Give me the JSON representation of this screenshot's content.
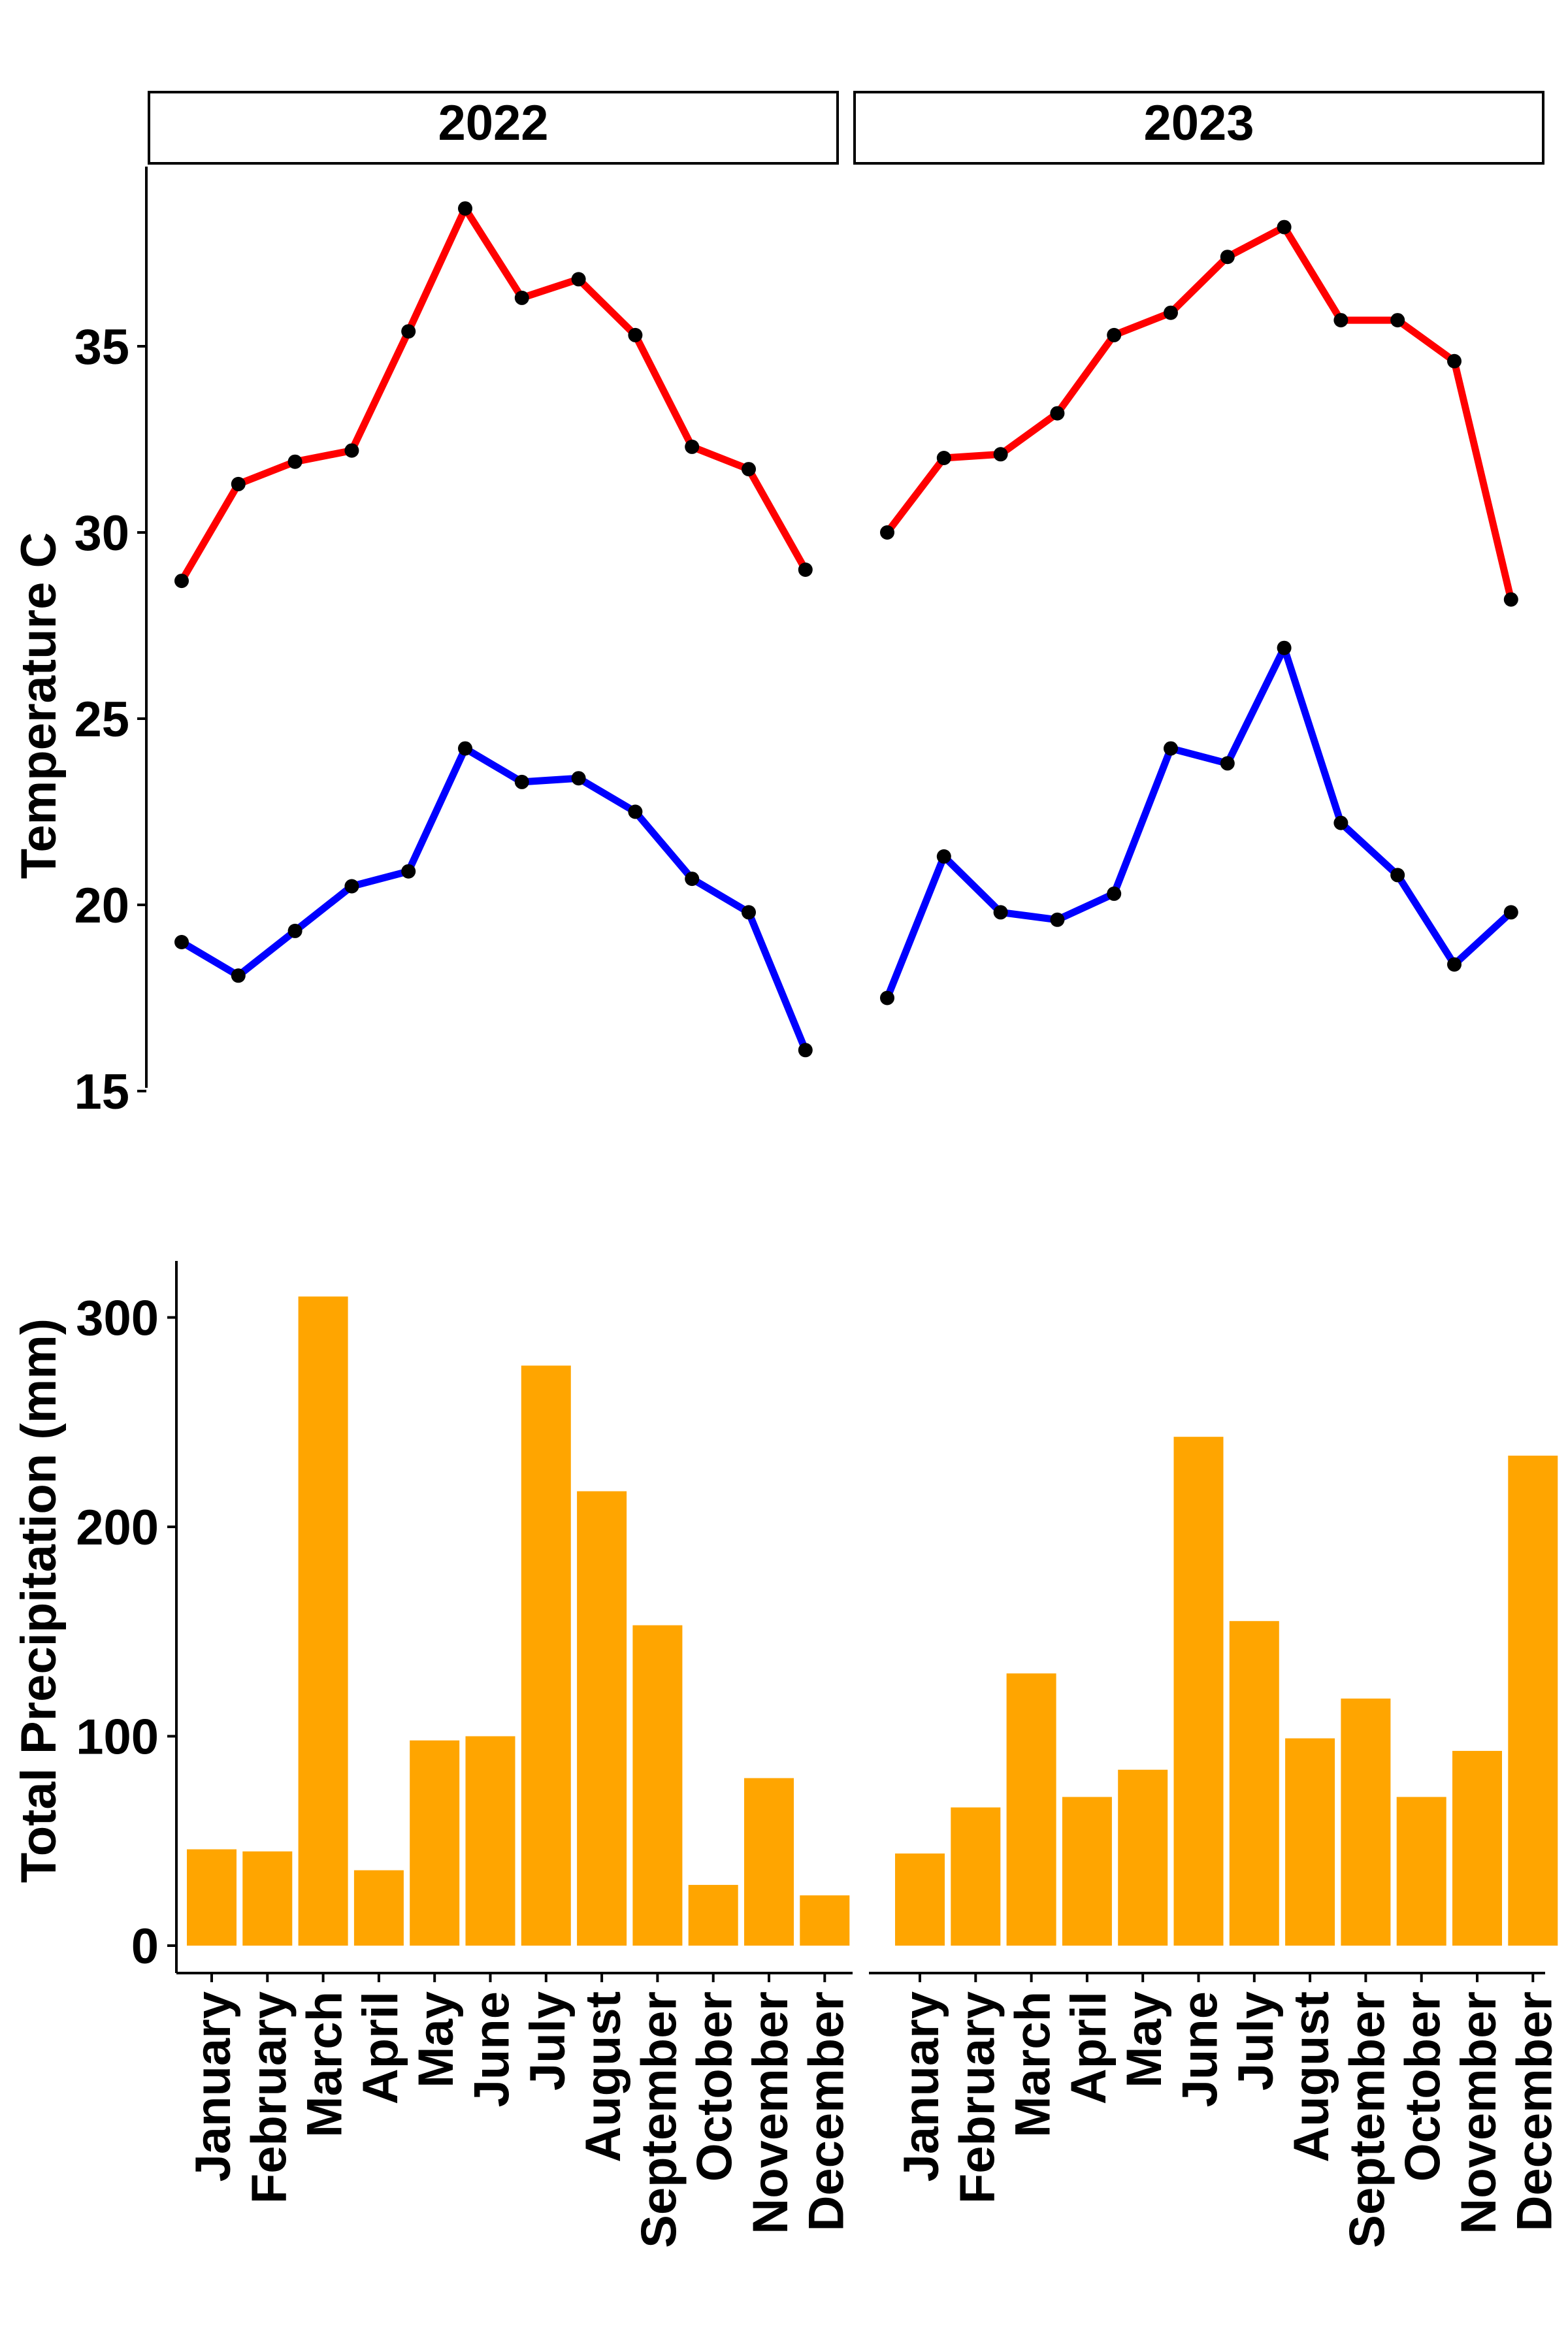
{
  "months": [
    "January",
    "February",
    "March",
    "April",
    "May",
    "June",
    "July",
    "August",
    "September",
    "October",
    "November",
    "December"
  ],
  "facets": [
    "2022",
    "2023"
  ],
  "chart_data": [
    {
      "type": "line",
      "title": "",
      "xlabel": "",
      "ylabel": "Temperature C",
      "ylim": [
        15,
        40
      ],
      "yticks": [
        15,
        20,
        25,
        30,
        35
      ],
      "grid": false,
      "legend": "none",
      "categories": [
        "January",
        "February",
        "March",
        "April",
        "May",
        "June",
        "July",
        "August",
        "September",
        "October",
        "November",
        "December"
      ],
      "panels": [
        {
          "facet": "2022",
          "series": [
            {
              "color": "#ff0000",
              "values": [
                28.7,
                31.3,
                31.9,
                32.2,
                35.4,
                38.7,
                36.3,
                36.8,
                35.3,
                32.3,
                31.7,
                29.0
              ]
            },
            {
              "color": "#0000ff",
              "values": [
                19.0,
                18.1,
                19.3,
                20.5,
                20.9,
                24.2,
                23.3,
                23.4,
                22.5,
                20.7,
                19.8,
                16.1
              ]
            }
          ]
        },
        {
          "facet": "2023",
          "series": [
            {
              "color": "#ff0000",
              "values": [
                30.0,
                32.0,
                32.1,
                33.2,
                35.3,
                35.9,
                37.4,
                38.2,
                35.7,
                35.7,
                34.6,
                28.2
              ]
            },
            {
              "color": "#0000ff",
              "values": [
                17.5,
                21.3,
                19.8,
                19.6,
                20.3,
                24.2,
                23.8,
                26.9,
                22.2,
                20.8,
                18.4,
                19.8
              ]
            }
          ]
        }
      ]
    },
    {
      "type": "bar",
      "title": "",
      "xlabel": "",
      "ylabel": "Total Precipitation (mm)",
      "ylim": [
        -15,
        325
      ],
      "yticks": [
        0,
        100,
        200,
        300
      ],
      "grid": false,
      "legend": "none",
      "color": "#ffa500",
      "categories": [
        "January",
        "February",
        "March",
        "April",
        "May",
        "June",
        "July",
        "August",
        "September",
        "October",
        "November",
        "December"
      ],
      "panels": [
        {
          "facet": "2022",
          "values": [
            46,
            45,
            310,
            36,
            98,
            100,
            277,
            217,
            153,
            29,
            80,
            24
          ]
        },
        {
          "facet": "2023",
          "values": [
            44,
            66,
            130,
            71,
            84,
            243,
            155,
            99,
            118,
            71,
            93,
            234
          ]
        }
      ]
    }
  ]
}
